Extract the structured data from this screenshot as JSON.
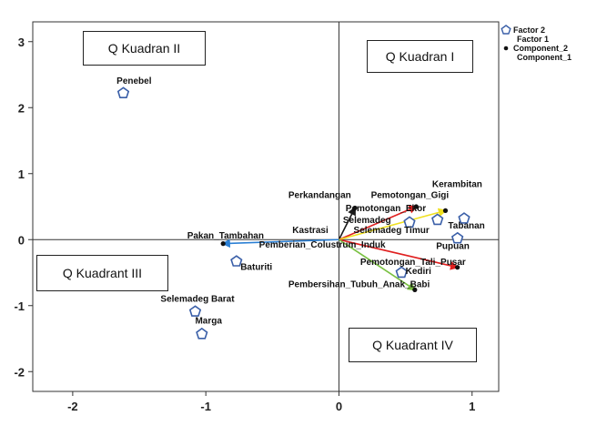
{
  "chart_data": {
    "type": "scatter",
    "xlim": [
      -2.3,
      1.2
    ],
    "ylim": [
      -2.3,
      3.3
    ],
    "x_ticks": [
      "-2",
      "-1",
      "0",
      "1"
    ],
    "x_tick_values": [
      -2,
      -1,
      0,
      1
    ],
    "y_ticks": [
      "3",
      "2",
      "1",
      "0",
      "-1",
      "-2"
    ],
    "y_tick_values": [
      3,
      2,
      1,
      0,
      -1,
      -2
    ],
    "grid": false,
    "reference_lines": {
      "x": 0,
      "y": 0
    },
    "legend_position": "top-right",
    "series": [
      {
        "name": "Factor 2",
        "marker": "pentagon-open",
        "points": [
          {
            "label": "Penebel",
            "x": -1.62,
            "y": 2.22
          },
          {
            "label": "Baturiti",
            "x": -0.77,
            "y": -0.33
          },
          {
            "label": "Selemadeg Barat",
            "x": -1.08,
            "y": -1.09
          },
          {
            "label": "Marga",
            "x": -1.03,
            "y": -1.43
          },
          {
            "label": "Selemadeg",
            "x": 0.53,
            "y": 0.26
          },
          {
            "label": "Kerambitan",
            "x": 0.74,
            "y": 0.3
          },
          {
            "label": "Tabanan",
            "x": 0.94,
            "y": 0.32
          },
          {
            "label": "Pupuan",
            "x": 0.89,
            "y": 0.02
          },
          {
            "label": "Kediri",
            "x": 0.47,
            "y": -0.5
          }
        ]
      },
      {
        "name": "Component_2",
        "marker": "dot",
        "points": [
          {
            "label": "Perkandangan",
            "x": 0.12,
            "y": 0.48
          },
          {
            "label": "Pemotongan_Gigi",
            "x": 0.58,
            "y": 0.5
          },
          {
            "label": "Pemotongan_Ekor",
            "x": 0.8,
            "y": 0.44
          },
          {
            "label": "Pakan_Tambahan",
            "x": -0.87,
            "y": -0.06
          },
          {
            "label": "Pemotongan_Tali_Pusar",
            "x": 0.89,
            "y": -0.42
          },
          {
            "label": "Pembersihan_Tubuh_Anak_Babi",
            "x": 0.57,
            "y": -0.76
          }
        ]
      }
    ],
    "point_labels": [
      {
        "text": "Penebel",
        "x": -1.67,
        "y": 2.36,
        "anchor": "start"
      },
      {
        "text": "Baturiti",
        "x": -0.74,
        "y": -0.46,
        "anchor": "start"
      },
      {
        "text": "Selemadeg Barat",
        "x": -1.34,
        "y": -0.94,
        "anchor": "start"
      },
      {
        "text": "Marga",
        "x": -1.08,
        "y": -1.27,
        "anchor": "start"
      },
      {
        "text": "Perkandangan",
        "x": -0.38,
        "y": 0.63,
        "anchor": "start"
      },
      {
        "text": "Pemotongan_Gigi",
        "x": 0.24,
        "y": 0.63,
        "anchor": "start"
      },
      {
        "text": "Pemotongan_Ekor",
        "x": 0.05,
        "y": 0.43,
        "anchor": "start"
      },
      {
        "text": "Kerambitan",
        "x": 0.7,
        "y": 0.8,
        "anchor": "start"
      },
      {
        "text": "Selemadeg",
        "x": 0.03,
        "y": 0.25,
        "anchor": "start"
      },
      {
        "text": "Kastrasi",
        "x": -0.35,
        "y": 0.1,
        "anchor": "start"
      },
      {
        "text": "Selemadeg Timur",
        "x": 0.11,
        "y": 0.1,
        "anchor": "start"
      },
      {
        "text": "Tabanan",
        "x": 0.82,
        "y": 0.17,
        "anchor": "start"
      },
      {
        "text": "Pakan_Tambahan",
        "x": -1.14,
        "y": 0.02,
        "anchor": "start"
      },
      {
        "text": "Pemberian_Colustrum_Induk",
        "x": -0.6,
        "y": -0.12,
        "anchor": "start"
      },
      {
        "text": "Pupuan",
        "x": 0.73,
        "y": -0.14,
        "anchor": "start"
      },
      {
        "text": "Pemotongan_Tali_Pusar",
        "x": 0.16,
        "y": -0.38,
        "anchor": "start"
      },
      {
        "text": "Kediri",
        "x": 0.5,
        "y": -0.52,
        "anchor": "start"
      },
      {
        "text": "Pembersihan_Tubuh_Anak_Babi",
        "x": -0.38,
        "y": -0.72,
        "anchor": "start"
      }
    ],
    "vectors": [
      {
        "label": "Perkandangan",
        "x": 0.12,
        "y": 0.48,
        "color": "#1a1a1a"
      },
      {
        "label": "Pemotongan_Gigi",
        "x": 0.58,
        "y": 0.5,
        "color": "#e02020"
      },
      {
        "label": "Pemotongan_Ekor",
        "x": 0.8,
        "y": 0.44,
        "color": "#f0e020"
      },
      {
        "label": "Pakan_Tambahan",
        "x": -0.87,
        "y": -0.06,
        "color": "#2a7fd4"
      },
      {
        "label": "Pemotongan_Tali_Pusar",
        "x": 0.89,
        "y": -0.42,
        "color": "#e02020"
      },
      {
        "label": "Pembersihan_Tubuh_Anak_Babi",
        "x": 0.57,
        "y": -0.76,
        "color": "#7ac142"
      }
    ],
    "marker_color": "#3a5fa8",
    "legend": [
      {
        "label": "Factor 2",
        "marker": "pentagon-open"
      },
      {
        "label": "Factor 1",
        "marker": "none"
      },
      {
        "label": "Component_2",
        "marker": "dot"
      },
      {
        "label": "Component_1",
        "marker": "none"
      }
    ]
  },
  "quadrants": {
    "q2": "Q  Kuadran II",
    "q1": "Q Kuadran I",
    "q3": "Q Kuadrant III",
    "q4": "Q Kuadrant IV"
  }
}
